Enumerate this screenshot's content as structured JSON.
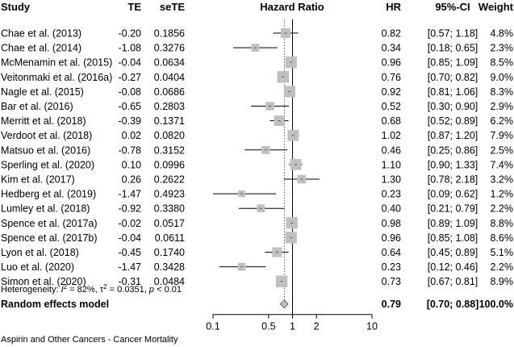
{
  "headers": {
    "study": "Study",
    "te": "TE",
    "sete": "seTE",
    "plot": "Hazard Ratio",
    "hr": "HR",
    "ci": "95%-CI",
    "weight": "Weight"
  },
  "chart_data": {
    "type": "forest",
    "x_scale": "log",
    "xlim": [
      0.1,
      10
    ],
    "xticks": [
      "0.1",
      "0.5",
      "1",
      "2",
      "10"
    ],
    "xtick_values": [
      0.1,
      0.5,
      1,
      2,
      10
    ],
    "reference_line": 1,
    "overall_line": 0.79,
    "studies": [
      {
        "study": "Chae et al. (2013)",
        "te": "-0.20",
        "sete": "0.1856",
        "hr": 0.82,
        "lower": 0.57,
        "upper": 1.18,
        "ci": "[0.57; 1.18]",
        "weight": "4.8%"
      },
      {
        "study": "Chae et al. (2014)",
        "te": "-1.08",
        "sete": "0.3276",
        "hr": 0.34,
        "lower": 0.18,
        "upper": 0.65,
        "ci": "[0.18; 0.65]",
        "weight": "2.3%"
      },
      {
        "study": "McMenamin et al. (2015)",
        "te": "-0.04",
        "sete": "0.0634",
        "hr": 0.96,
        "lower": 0.85,
        "upper": 1.09,
        "ci": "[0.85; 1.09]",
        "weight": "8.5%"
      },
      {
        "study": "Veitonmaki et al. (2016a)",
        "te": "-0.27",
        "sete": "0.0404",
        "hr": 0.76,
        "lower": 0.7,
        "upper": 0.82,
        "ci": "[0.70; 0.82]",
        "weight": "9.0%"
      },
      {
        "study": "Nagle et al. (2015)",
        "te": "-0.08",
        "sete": "0.0686",
        "hr": 0.92,
        "lower": 0.81,
        "upper": 1.06,
        "ci": "[0.81; 1.06]",
        "weight": "8.3%"
      },
      {
        "study": "Bar et al. (2016)",
        "te": "-0.65",
        "sete": "0.2803",
        "hr": 0.52,
        "lower": 0.3,
        "upper": 0.9,
        "ci": "[0.30; 0.90]",
        "weight": "2.9%"
      },
      {
        "study": "Merritt et al. (2018)",
        "te": "-0.39",
        "sete": "0.1371",
        "hr": 0.68,
        "lower": 0.52,
        "upper": 0.89,
        "ci": "[0.52; 0.89]",
        "weight": "6.2%"
      },
      {
        "study": "Verdoot et al. (2018)",
        "te": "0.02",
        "sete": "0.0820",
        "hr": 1.02,
        "lower": 0.87,
        "upper": 1.2,
        "ci": "[0.87; 1.20]",
        "weight": "7.9%"
      },
      {
        "study": "Matsuo et al. (2016)",
        "te": "-0.78",
        "sete": "0.3152",
        "hr": 0.46,
        "lower": 0.25,
        "upper": 0.86,
        "ci": "[0.25; 0.86]",
        "weight": "2.5%"
      },
      {
        "study": "Sperling et al. (2020)",
        "te": "0.10",
        "sete": "0.0996",
        "hr": 1.1,
        "lower": 0.9,
        "upper": 1.33,
        "ci": "[0.90; 1.33]",
        "weight": "7.4%"
      },
      {
        "study": "Kim et al. (2017)",
        "te": "0.26",
        "sete": "0.2622",
        "hr": 1.3,
        "lower": 0.78,
        "upper": 2.18,
        "ci": "[0.78; 2.18]",
        "weight": "3.2%"
      },
      {
        "study": "Hedberg et al. (2019)",
        "te": "-1.47",
        "sete": "0.4923",
        "hr": 0.23,
        "lower": 0.09,
        "upper": 0.62,
        "ci": "[0.09; 0.62]",
        "weight": "1.2%"
      },
      {
        "study": "Lumley et al. (2018)",
        "te": "-0.92",
        "sete": "0.3380",
        "hr": 0.4,
        "lower": 0.21,
        "upper": 0.79,
        "ci": "[0.21; 0.79]",
        "weight": "2.2%"
      },
      {
        "study": "Spence et al. (2017a)",
        "te": "-0.02",
        "sete": "0.0517",
        "hr": 0.98,
        "lower": 0.89,
        "upper": 1.09,
        "ci": "[0.89; 1.09]",
        "weight": "8.8%"
      },
      {
        "study": "Spence et al. (2017b)",
        "te": "-0.04",
        "sete": "0.0611",
        "hr": 0.96,
        "lower": 0.85,
        "upper": 1.08,
        "ci": "[0.85; 1.08]",
        "weight": "8.6%"
      },
      {
        "study": "Lyon et al. (2018)",
        "te": "-0.45",
        "sete": "0.1740",
        "hr": 0.64,
        "lower": 0.45,
        "upper": 0.89,
        "ci": "[0.45; 0.89]",
        "weight": "5.1%"
      },
      {
        "study": "Luo et al. (2020)",
        "te": "-1.47",
        "sete": "0.3428",
        "hr": 0.23,
        "lower": 0.12,
        "upper": 0.46,
        "ci": "[0.12; 0.46]",
        "weight": "2.2%"
      },
      {
        "study": "Simon et al. (2020)",
        "te": "-0.31",
        "sete": "0.0484",
        "hr": 0.73,
        "lower": 0.67,
        "upper": 0.81,
        "ci": "[0.67; 0.81]",
        "weight": "8.9%"
      }
    ],
    "summary": {
      "label": "Random effects model",
      "hr": 0.79,
      "lower": 0.7,
      "upper": 0.88,
      "hr_text": "0.79",
      "ci": "[0.70; 0.88]",
      "weight": "100.0%"
    },
    "heterogeneity": {
      "prefix": "Heterogeneity: ",
      "i2_symbol": "I",
      "i2_sup": "2",
      "i2_value": " = 82%, ",
      "tau_symbol": "τ",
      "tau_sup": "2",
      "tau_value": " = 0.0351, ",
      "p_symbol": "p",
      "p_value": " < 0.01"
    },
    "colors": {
      "box": "#c0c0c0",
      "line": "#000000",
      "dotted": "#555555",
      "diamond": "#c0c0c0"
    }
  },
  "caption": "Aspirin and Other Cancers - Cancer Mortality"
}
